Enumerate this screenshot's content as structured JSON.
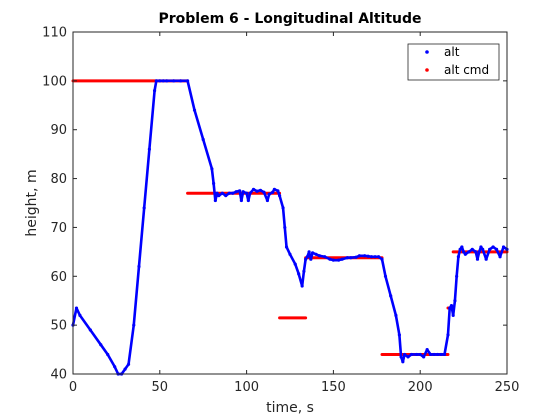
{
  "chart_data": {
    "type": "scatter",
    "title": "Problem 6 - Longitudinal Altitude",
    "xlabel": "time, s",
    "ylabel": "height, m",
    "xlim": [
      0,
      250
    ],
    "ylim": [
      40,
      110
    ],
    "x_ticks": [
      "0",
      "50",
      "100",
      "150",
      "200",
      "250"
    ],
    "y_ticks": [
      "40",
      "50",
      "60",
      "70",
      "80",
      "90",
      "100",
      "110"
    ],
    "grid": false,
    "legend_position": "top-right",
    "series": [
      {
        "name": "alt",
        "color": "#0000ff",
        "marker": "dot",
        "points": [
          [
            0,
            50
          ],
          [
            2,
            53.5
          ],
          [
            4,
            52
          ],
          [
            10,
            49
          ],
          [
            16,
            46
          ],
          [
            20,
            44
          ],
          [
            24,
            41.5
          ],
          [
            26,
            40
          ],
          [
            28,
            40
          ],
          [
            30,
            41
          ],
          [
            32,
            42
          ],
          [
            35,
            50
          ],
          [
            38,
            62
          ],
          [
            41,
            74
          ],
          [
            44,
            86
          ],
          [
            47,
            98
          ],
          [
            48,
            100
          ],
          [
            50,
            100
          ],
          [
            52,
            100
          ],
          [
            54,
            100
          ],
          [
            58,
            100
          ],
          [
            62,
            100
          ],
          [
            66,
            100
          ],
          [
            70,
            94
          ],
          [
            75,
            88
          ],
          [
            80,
            82
          ],
          [
            81,
            79
          ],
          [
            82,
            75.5
          ],
          [
            83,
            77
          ],
          [
            84,
            76.5
          ],
          [
            86,
            77
          ],
          [
            88,
            76.5
          ],
          [
            90,
            77
          ],
          [
            92,
            77
          ],
          [
            94,
            77.3
          ],
          [
            96,
            77.5
          ],
          [
            97,
            75.5
          ],
          [
            98,
            77.3
          ],
          [
            100,
            77
          ],
          [
            101,
            75.5
          ],
          [
            102,
            77
          ],
          [
            104,
            77.8
          ],
          [
            106,
            77.4
          ],
          [
            108,
            77.6
          ],
          [
            110,
            77.2
          ],
          [
            112,
            75.5
          ],
          [
            113,
            76.8
          ],
          [
            115,
            77.2
          ],
          [
            116,
            77.8
          ],
          [
            118,
            77.5
          ],
          [
            119,
            76.5
          ],
          [
            121,
            74
          ],
          [
            122,
            70
          ],
          [
            123,
            66
          ],
          [
            125,
            64.5
          ],
          [
            128,
            62.5
          ],
          [
            130,
            60.5
          ],
          [
            132,
            58
          ],
          [
            133,
            61
          ],
          [
            134,
            63.5
          ],
          [
            135,
            64
          ],
          [
            136,
            65
          ],
          [
            137,
            63.5
          ],
          [
            138,
            64.8
          ],
          [
            140,
            64.5
          ],
          [
            142,
            64.2
          ],
          [
            145,
            64
          ],
          [
            148,
            63.5
          ],
          [
            150,
            63.3
          ],
          [
            153,
            63.3
          ],
          [
            155,
            63.5
          ],
          [
            158,
            63.8
          ],
          [
            160,
            63.8
          ],
          [
            163,
            63.9
          ],
          [
            165,
            64.2
          ],
          [
            168,
            64.2
          ],
          [
            170,
            64.1
          ],
          [
            172,
            64
          ],
          [
            174,
            64
          ],
          [
            176,
            64
          ],
          [
            178,
            63.5
          ],
          [
            180,
            60
          ],
          [
            183,
            56
          ],
          [
            186,
            52
          ],
          [
            188,
            48
          ],
          [
            189,
            43.5
          ],
          [
            190,
            42.5
          ],
          [
            191,
            44
          ],
          [
            193,
            43.5
          ],
          [
            195,
            44
          ],
          [
            198,
            44
          ],
          [
            200,
            44
          ],
          [
            202,
            43.5
          ],
          [
            204,
            45
          ],
          [
            206,
            44
          ],
          [
            208,
            44
          ],
          [
            210,
            44
          ],
          [
            212,
            44
          ],
          [
            214,
            44
          ],
          [
            216,
            48
          ],
          [
            217,
            53.5
          ],
          [
            218,
            54
          ],
          [
            219,
            52
          ],
          [
            220,
            55
          ],
          [
            221,
            60
          ],
          [
            222,
            64
          ],
          [
            223,
            65.5
          ],
          [
            224,
            66
          ],
          [
            225,
            65
          ],
          [
            226,
            64.5
          ],
          [
            228,
            65
          ],
          [
            230,
            65.5
          ],
          [
            232,
            65
          ],
          [
            233,
            63.5
          ],
          [
            234,
            65
          ],
          [
            235,
            66
          ],
          [
            236,
            65.5
          ],
          [
            238,
            63.5
          ],
          [
            240,
            65.5
          ],
          [
            242,
            66
          ],
          [
            244,
            65.5
          ],
          [
            246,
            64
          ],
          [
            248,
            66
          ],
          [
            250,
            65.5
          ]
        ]
      },
      {
        "name": "alt cmd",
        "color": "#ff0000",
        "marker": "dot",
        "segments": [
          [
            0,
            66,
            100
          ],
          [
            66,
            119,
            77
          ],
          [
            119,
            134,
            51.5
          ],
          [
            134,
            178,
            63.8
          ],
          [
            178,
            216,
            44
          ],
          [
            216,
            219,
            53.5
          ],
          [
            219,
            250,
            65
          ]
        ]
      }
    ]
  }
}
